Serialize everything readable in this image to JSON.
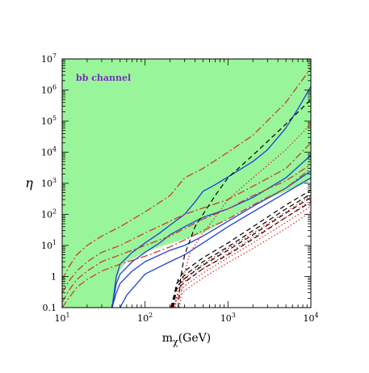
{
  "chart_data": {
    "type": "line",
    "x_scale": "log",
    "y_scale": "log",
    "xlim": [
      10,
      10000
    ],
    "ylim": [
      0.1,
      10000000
    ],
    "xlabel": "m",
    "xlabel_sub": "χ",
    "xlabel_unit": "(GeV)",
    "ylabel": "η",
    "x_ticks": [
      {
        "value": 10,
        "base": "10",
        "exp": "1"
      },
      {
        "value": 100,
        "base": "10",
        "exp": "2"
      },
      {
        "value": 1000,
        "base": "10",
        "exp": "3"
      },
      {
        "value": 10000,
        "base": "10",
        "exp": "4"
      }
    ],
    "y_ticks": [
      {
        "value": 0.1,
        "label": "0.1"
      },
      {
        "value": 1,
        "label": "1"
      },
      {
        "value": 10,
        "base": "10",
        "exp": "1"
      },
      {
        "value": 100,
        "base": "10",
        "exp": "2"
      },
      {
        "value": 1000,
        "base": "10",
        "exp": "3"
      },
      {
        "value": 10000,
        "base": "10",
        "exp": "4"
      },
      {
        "value": 100000,
        "base": "10",
        "exp": "5"
      },
      {
        "value": 1000000,
        "base": "10",
        "exp": "6"
      },
      {
        "value": 10000000,
        "base": "10",
        "exp": "7"
      }
    ],
    "annotation": {
      "text": "bb channel",
      "color": "#7b2fbf"
    },
    "colors": {
      "region_fill": "#99f599",
      "solid": "#1f3fd6",
      "dashdot": "#c8402a",
      "dashed": "#000000",
      "dotted": "#e02020"
    },
    "excluded_region_boundary": [
      [
        40,
        0.1
      ],
      [
        45,
        0.7
      ],
      [
        50,
        1.6
      ],
      [
        60,
        3
      ],
      [
        80,
        4.5
      ],
      [
        100,
        6
      ],
      [
        150,
        9
      ],
      [
        200,
        11.5
      ],
      [
        300,
        16
      ],
      [
        500,
        25
      ],
      [
        1000,
        70
      ],
      [
        2000,
        200
      ],
      [
        5000,
        550
      ],
      [
        10000,
        1200
      ]
    ],
    "series": [
      {
        "style": "solid",
        "points": [
          [
            40,
            0.1
          ],
          [
            45,
            1
          ],
          [
            50,
            2.5
          ],
          [
            70,
            6
          ],
          [
            100,
            12
          ],
          [
            150,
            25
          ],
          [
            200,
            45
          ],
          [
            300,
            100
          ],
          [
            400,
            250
          ],
          [
            500,
            550
          ],
          [
            700,
            900
          ],
          [
            1000,
            1600
          ],
          [
            2000,
            5000
          ],
          [
            3000,
            12000
          ],
          [
            5000,
            60000
          ],
          [
            7000,
            250000
          ],
          [
            10000,
            1300000
          ]
        ]
      },
      {
        "style": "solid",
        "points": [
          [
            40,
            0.1
          ],
          [
            45,
            0.6
          ],
          [
            50,
            1.2
          ],
          [
            70,
            3
          ],
          [
            100,
            6
          ],
          [
            150,
            12
          ],
          [
            200,
            22
          ],
          [
            300,
            40
          ],
          [
            500,
            80
          ],
          [
            1000,
            150
          ],
          [
            2000,
            350
          ],
          [
            5000,
            1500
          ],
          [
            10000,
            8000
          ]
        ]
      },
      {
        "style": "solid",
        "points": [
          [
            40,
            0.1
          ],
          [
            45,
            0.3
          ],
          [
            50,
            0.6
          ],
          [
            70,
            1.5
          ],
          [
            100,
            3
          ],
          [
            200,
            7
          ],
          [
            300,
            10
          ],
          [
            500,
            20
          ],
          [
            1000,
            60
          ],
          [
            2000,
            180
          ],
          [
            5000,
            700
          ],
          [
            10000,
            2500
          ]
        ]
      },
      {
        "style": "solid",
        "points": [
          [
            50,
            0.1
          ],
          [
            60,
            0.25
          ],
          [
            80,
            0.6
          ],
          [
            100,
            1.2
          ],
          [
            200,
            3
          ],
          [
            300,
            5
          ],
          [
            500,
            12
          ],
          [
            1000,
            40
          ],
          [
            2000,
            120
          ],
          [
            5000,
            500
          ],
          [
            10000,
            1500
          ]
        ]
      },
      {
        "style": "dashdot",
        "points": [
          [
            10,
            0.8
          ],
          [
            12,
            2
          ],
          [
            15,
            5
          ],
          [
            20,
            10
          ],
          [
            30,
            20
          ],
          [
            50,
            40
          ],
          [
            100,
            120
          ],
          [
            200,
            400
          ],
          [
            300,
            1500
          ],
          [
            500,
            3000
          ],
          [
            1000,
            10000
          ],
          [
            2000,
            35000
          ],
          [
            5000,
            400000
          ],
          [
            10000,
            5000000
          ]
        ]
      },
      {
        "style": "dashdot",
        "points": [
          [
            10,
            0.3
          ],
          [
            12,
            0.7
          ],
          [
            15,
            1.5
          ],
          [
            20,
            3
          ],
          [
            30,
            6
          ],
          [
            50,
            10
          ],
          [
            100,
            25
          ],
          [
            200,
            60
          ],
          [
            300,
            100
          ],
          [
            500,
            160
          ],
          [
            1000,
            300
          ],
          [
            2000,
            800
          ],
          [
            5000,
            3000
          ],
          [
            10000,
            20000
          ]
        ]
      },
      {
        "style": "dashdot",
        "points": [
          [
            10,
            0.15
          ],
          [
            12,
            0.35
          ],
          [
            15,
            0.8
          ],
          [
            20,
            1.5
          ],
          [
            30,
            3
          ],
          [
            50,
            5
          ],
          [
            100,
            10
          ],
          [
            200,
            20
          ],
          [
            300,
            35
          ],
          [
            500,
            70
          ],
          [
            1000,
            150
          ],
          [
            2000,
            400
          ],
          [
            5000,
            1200
          ],
          [
            10000,
            4000
          ]
        ]
      },
      {
        "style": "dashdot",
        "points": [
          [
            10,
            0.1
          ],
          [
            12,
            0.2
          ],
          [
            15,
            0.45
          ],
          [
            20,
            0.8
          ],
          [
            30,
            1.5
          ],
          [
            50,
            2.5
          ],
          [
            100,
            4.5
          ],
          [
            200,
            9
          ],
          [
            300,
            15
          ],
          [
            500,
            30
          ],
          [
            1000,
            70
          ],
          [
            2000,
            200
          ],
          [
            5000,
            700
          ],
          [
            10000,
            3000
          ]
        ]
      },
      {
        "style": "dashed",
        "points": [
          [
            250,
            0.1
          ],
          [
            270,
            1
          ],
          [
            300,
            5
          ],
          [
            400,
            40
          ],
          [
            500,
            100
          ],
          [
            700,
            400
          ],
          [
            1000,
            1500
          ],
          [
            2000,
            8000
          ],
          [
            5000,
            80000
          ],
          [
            10000,
            500000
          ]
        ]
      },
      {
        "style": "dashed",
        "points": [
          [
            220,
            0.1
          ],
          [
            250,
            0.8
          ],
          [
            300,
            1.5
          ],
          [
            500,
            4
          ],
          [
            1000,
            12
          ],
          [
            2000,
            40
          ],
          [
            5000,
            200
          ],
          [
            10000,
            600
          ]
        ]
      },
      {
        "style": "dashed",
        "points": [
          [
            215,
            0.1
          ],
          [
            240,
            0.6
          ],
          [
            300,
            1.1
          ],
          [
            500,
            3
          ],
          [
            1000,
            9
          ],
          [
            2000,
            30
          ],
          [
            5000,
            150
          ],
          [
            10000,
            450
          ]
        ]
      },
      {
        "style": "dashed",
        "points": [
          [
            210,
            0.1
          ],
          [
            235,
            0.45
          ],
          [
            300,
            0.85
          ],
          [
            500,
            2.3
          ],
          [
            1000,
            7
          ],
          [
            2000,
            22
          ],
          [
            5000,
            110
          ],
          [
            10000,
            350
          ]
        ]
      },
      {
        "style": "dashed",
        "points": [
          [
            205,
            0.1
          ],
          [
            230,
            0.35
          ],
          [
            300,
            0.65
          ],
          [
            500,
            1.8
          ],
          [
            1000,
            5
          ],
          [
            2000,
            16
          ],
          [
            5000,
            80
          ],
          [
            10000,
            250
          ]
        ]
      },
      {
        "style": "dotted",
        "points": [
          [
            260,
            0.1
          ],
          [
            290,
            1
          ],
          [
            350,
            6
          ],
          [
            500,
            25
          ],
          [
            700,
            80
          ],
          [
            1000,
            300
          ],
          [
            2000,
            1500
          ],
          [
            5000,
            12000
          ],
          [
            10000,
            80000
          ]
        ]
      },
      {
        "style": "dotted",
        "points": [
          [
            230,
            0.1
          ],
          [
            260,
            0.5
          ],
          [
            300,
            0.9
          ],
          [
            500,
            2.5
          ],
          [
            1000,
            8
          ],
          [
            2000,
            25
          ],
          [
            5000,
            120
          ],
          [
            10000,
            400
          ]
        ]
      },
      {
        "style": "dotted",
        "points": [
          [
            225,
            0.1
          ],
          [
            250,
            0.35
          ],
          [
            300,
            0.7
          ],
          [
            500,
            1.8
          ],
          [
            1000,
            5.5
          ],
          [
            2000,
            18
          ],
          [
            5000,
            80
          ],
          [
            10000,
            280
          ]
        ]
      },
      {
        "style": "dotted",
        "points": [
          [
            220,
            0.1
          ],
          [
            245,
            0.25
          ],
          [
            300,
            0.5
          ],
          [
            500,
            1.3
          ],
          [
            1000,
            4
          ],
          [
            2000,
            12
          ],
          [
            5000,
            55
          ],
          [
            10000,
            180
          ]
        ]
      },
      {
        "style": "dotted",
        "points": [
          [
            215,
            0.1
          ],
          [
            240,
            0.18
          ],
          [
            300,
            0.35
          ],
          [
            500,
            0.9
          ],
          [
            1000,
            2.8
          ],
          [
            2000,
            8
          ],
          [
            5000,
            35
          ],
          [
            10000,
            120
          ]
        ]
      }
    ]
  }
}
